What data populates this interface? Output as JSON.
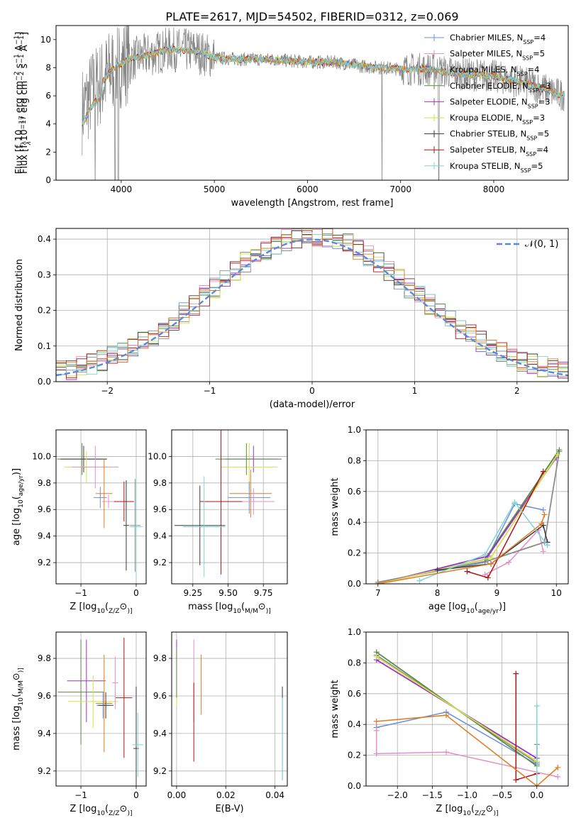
{
  "figure": {
    "title": "PLATE=2617, MJD=54502, FIBERID=0312, z=0.069"
  },
  "legend_entries": [
    {
      "label": "Chabrier MILES, N",
      "sub": "SSP",
      "suffix": "=4",
      "color": "#6a8fd8"
    },
    {
      "label": "Salpeter MILES, N",
      "sub": "SSP",
      "suffix": "=5",
      "color": "#e58ec4"
    },
    {
      "label": "Kroupa MILES, N",
      "sub": "SSP",
      "suffix": "=4",
      "color": "#8c8c8c"
    },
    {
      "label": "Chabrier ELODIE, N",
      "sub": "SSP",
      "suffix": "=3",
      "color": "#5b8a46"
    },
    {
      "label": "Salpeter ELODIE, N",
      "sub": "SSP",
      "suffix": "=3",
      "color": "#9b32c8"
    },
    {
      "label": "Kroupa ELODIE, N",
      "sub": "SSP",
      "suffix": "=3",
      "color": "#d2e04a"
    },
    {
      "label": "Chabrier STELIB, N",
      "sub": "SSP",
      "suffix": "=5",
      "color": "#3a3a3a"
    },
    {
      "label": "Salpeter STELIB, N",
      "sub": "SSP",
      "suffix": "=4",
      "color": "#b01414"
    },
    {
      "label": "Kroupa STELIB, N",
      "sub": "SSP",
      "suffix": "=5",
      "color": "#7fd6d6"
    }
  ],
  "colors": {
    "orange": "#e07b20",
    "dark_gray": "#555555",
    "normal_curve": "#5b88d8",
    "grid": "#b0b0b0"
  },
  "chart_data": [
    {
      "id": "spectrum",
      "type": "line",
      "title": "PLATE=2617, MJD=54502, FIBERID=0312, z=0.069",
      "xlabel": "wavelength [Angstrom, rest frame]",
      "ylabel_parts": [
        "Flux [f",
        "λ",
        "10",
        "−17",
        " erg cm",
        "−2",
        " s",
        "−1",
        " A",
        "−1",
        "]"
      ],
      "xlim": [
        3300,
        8800
      ],
      "ylim": [
        0,
        11
      ],
      "xticks": [
        4000,
        5000,
        6000,
        7000,
        8000
      ],
      "yticks": [
        0,
        2,
        4,
        6,
        8,
        10
      ],
      "grid": false,
      "legend": "top-right",
      "data_anchors": {
        "x": [
          3600,
          3700,
          3800,
          3900,
          4000,
          4100,
          4300,
          4500,
          4800,
          5000,
          5300,
          5600,
          6000,
          6300,
          6600,
          7000,
          7300,
          7600,
          8000,
          8400,
          8700
        ],
        "y": [
          5.2,
          6.4,
          7.0,
          7.9,
          8.3,
          8.6,
          8.9,
          9.3,
          9.2,
          8.7,
          8.6,
          8.6,
          8.4,
          8.4,
          8.1,
          7.9,
          7.9,
          7.6,
          7.4,
          6.8,
          6.1
        ]
      }
    },
    {
      "id": "residuals",
      "type": "area",
      "xlabel": "(data-model)/error",
      "ylabel": "Normed distribution",
      "xlim": [
        -2.5,
        2.5
      ],
      "ylim": [
        0,
        0.43
      ],
      "xticks": [
        -2,
        -1,
        0,
        1,
        2
      ],
      "yticks": [
        0.0,
        0.1,
        0.2,
        0.3,
        0.4
      ],
      "grid": true,
      "legend": "top-right",
      "legend_label": "𝒩(0, 1)",
      "bins": {
        "start": -2.5,
        "width": 0.1
      }
    },
    {
      "id": "age_vs_Z",
      "type": "scatter",
      "xlabel_parts": [
        "Z [log",
        "10",
        "(",
        "Z/Z",
        "⊙",
        ")]"
      ],
      "ylabel_parts": [
        "age  [log",
        "10",
        "(",
        "age/yr",
        ")]"
      ],
      "xlim": [
        -1.45,
        0.18
      ],
      "ylim": [
        9.04,
        10.2
      ],
      "xticks": [
        -1,
        0
      ],
      "yticks": [
        9.2,
        9.4,
        9.6,
        9.8,
        10.0
      ],
      "grid": true,
      "points": [
        {
          "series": 3,
          "x": -0.98,
          "y": 9.98,
          "xerr": 0.45,
          "yerr": 0.12
        },
        {
          "series": 6,
          "x": -0.95,
          "y": 9.98,
          "xerr": 0.42,
          "yerr": 0.1
        },
        {
          "series": 5,
          "x": -0.9,
          "y": 9.92,
          "xerr": 0.4,
          "yerr": 0.12
        },
        {
          "series": 1,
          "x": -0.74,
          "y": 9.92,
          "xerr": 0.42,
          "yerr": 0.16
        },
        {
          "series": 9,
          "x": -0.58,
          "y": 9.72,
          "xerr": 0.15,
          "yerr": 0.26
        },
        {
          "series": 0,
          "x": -0.65,
          "y": 9.69,
          "xerr": 0.12,
          "yerr": 0.08
        },
        {
          "series": 1,
          "x": -0.5,
          "y": 9.66,
          "xerr": 0.12,
          "yerr": 0.05
        },
        {
          "series": 7,
          "x": -0.22,
          "y": 9.66,
          "xerr": 0.18,
          "yerr": 0.15
        },
        {
          "series": 6,
          "x": -0.18,
          "y": 9.48,
          "xerr": 0.05,
          "yerr": 0.34
        },
        {
          "series": 2,
          "x": -0.02,
          "y": 9.48,
          "xerr": 0.1,
          "yerr": 0.35
        },
        {
          "series": 8,
          "x": 0.0,
          "y": 9.47,
          "xerr": 0.12,
          "yerr": 0.38
        }
      ]
    },
    {
      "id": "age_vs_mass",
      "type": "scatter",
      "xlabel_parts": [
        "mass [log",
        "10",
        "(",
        "M/M",
        "⊙",
        ")]"
      ],
      "xlim": [
        9.1,
        9.92
      ],
      "ylim": [
        9.04,
        10.2
      ],
      "xticks": [
        9.25,
        9.5,
        9.75
      ],
      "yticks": [
        9.2,
        9.4,
        9.6,
        9.8,
        10.0
      ],
      "xtick_labels": [
        "9.25",
        "9.50",
        "9.75"
      ],
      "grid": true,
      "points": [
        {
          "series": 4,
          "x": 9.68,
          "y": 9.98,
          "xerr": 0.2,
          "yerr": 0.1
        },
        {
          "series": 5,
          "x": 9.65,
          "y": 9.92,
          "xerr": 0.2,
          "yerr": 0.18
        },
        {
          "series": 3,
          "x": 9.63,
          "y": 9.98,
          "xerr": 0.22,
          "yerr": 0.12
        },
        {
          "series": 9,
          "x": 9.66,
          "y": 9.72,
          "xerr": 0.15,
          "yerr": 0.18
        },
        {
          "series": 0,
          "x": 9.65,
          "y": 9.69,
          "xerr": 0.15,
          "yerr": 0.12
        },
        {
          "series": 1,
          "x": 9.68,
          "y": 9.66,
          "xerr": 0.15,
          "yerr": 0.1
        },
        {
          "series": 7,
          "x": 9.45,
          "y": 9.66,
          "xerr": 0.15,
          "yerr": 0.55
        },
        {
          "series": 6,
          "x": 9.3,
          "y": 9.48,
          "xerr": 0.18,
          "yerr": 0.3
        },
        {
          "series": 8,
          "x": 9.33,
          "y": 9.47,
          "xerr": 0.15,
          "yerr": 0.38
        }
      ]
    },
    {
      "id": "mass_weight_vs_age",
      "type": "line",
      "xlabel_parts": [
        "age  [log",
        "10",
        "(",
        "age/yr",
        ")]"
      ],
      "ylabel": "mass weight",
      "xlim": [
        6.8,
        10.2
      ],
      "ylim": [
        0,
        1.0
      ],
      "xticks": [
        7,
        8,
        9,
        10
      ],
      "yticks": [
        0.0,
        0.2,
        0.4,
        0.6,
        0.8,
        1.0
      ],
      "grid": true,
      "series": [
        {
          "series": 0,
          "x": [
            7.0,
            8.8,
            9.3,
            9.78
          ],
          "y": [
            0.01,
            0.14,
            0.52,
            0.48
          ]
        },
        {
          "series": 1,
          "x": [
            8.8,
            9.2,
            9.7,
            9.78
          ],
          "y": [
            0.06,
            0.14,
            0.35,
            0.21
          ]
        },
        {
          "series": 2,
          "x": [
            7.0,
            8.85,
            9.8,
            10.05
          ],
          "y": [
            0.01,
            0.15,
            0.27,
            0.86
          ]
        },
        {
          "series": 3,
          "x": [
            7.0,
            8.8,
            10.05
          ],
          "y": [
            0.0,
            0.16,
            0.87
          ]
        },
        {
          "series": 4,
          "x": [
            7.0,
            8.85,
            10.0
          ],
          "y": [
            0.0,
            0.18,
            0.82
          ]
        },
        {
          "series": 5,
          "x": [
            7.0,
            8.9,
            10.02
          ],
          "y": [
            0.0,
            0.17,
            0.84
          ]
        },
        {
          "series": 6,
          "x": [
            8.0,
            8.9,
            9.78,
            9.85
          ],
          "y": [
            0.09,
            0.13,
            0.38,
            0.27
          ]
        },
        {
          "series": 7,
          "x": [
            8.5,
            8.85,
            9.78
          ],
          "y": [
            0.08,
            0.04,
            0.73
          ]
        },
        {
          "series": 8,
          "x": [
            7.7,
            8.8,
            9.3,
            9.85
          ],
          "y": [
            0.02,
            0.19,
            0.53,
            0.25
          ]
        },
        {
          "series": 9,
          "x": [
            7.0,
            8.9,
            9.75,
            9.8
          ],
          "y": [
            0.0,
            0.13,
            0.39,
            0.45
          ]
        }
      ]
    },
    {
      "id": "mass_vs_Z",
      "type": "scatter",
      "xlabel_parts": [
        "Z [log",
        "10",
        "(",
        "Z/Z",
        "⊙",
        ")]"
      ],
      "ylabel_parts": [
        "mass [log",
        "10",
        "(",
        "M/M",
        "⊙",
        ")]"
      ],
      "xlim": [
        -1.45,
        0.18
      ],
      "ylim": [
        9.12,
        9.94
      ],
      "xticks": [
        -1,
        0
      ],
      "yticks": [
        9.2,
        9.4,
        9.6,
        9.8
      ],
      "grid": true,
      "points": [
        {
          "series": 3,
          "x": -1.0,
          "y": 9.62,
          "xerr": 0.42,
          "yerr": 0.28
        },
        {
          "series": 4,
          "x": -0.9,
          "y": 9.68,
          "xerr": 0.35,
          "yerr": 0.22
        },
        {
          "series": 5,
          "x": -0.78,
          "y": 9.57,
          "xerr": 0.45,
          "yerr": 0.14
        },
        {
          "series": 9,
          "x": -0.58,
          "y": 9.56,
          "xerr": 0.15,
          "yerr": 0.26
        },
        {
          "series": 0,
          "x": -0.6,
          "y": 9.55,
          "xerr": 0.12,
          "yerr": 0.07
        },
        {
          "series": 6,
          "x": -0.55,
          "y": 9.55,
          "xerr": 0.14,
          "yerr": 0.07
        },
        {
          "series": 1,
          "x": -0.38,
          "y": 9.67,
          "xerr": 0.05,
          "yerr": 0.14
        },
        {
          "series": 7,
          "x": -0.22,
          "y": 9.59,
          "xerr": 0.15,
          "yerr": 0.32
        },
        {
          "series": 6,
          "x": 0.0,
          "y": 9.32,
          "xerr": 0.05,
          "yerr": 0.33
        },
        {
          "series": 8,
          "x": 0.03,
          "y": 9.34,
          "xerr": 0.1,
          "yerr": 0.17
        }
      ]
    },
    {
      "id": "mass_vs_ebv",
      "type": "scatter",
      "xlabel": "E(B-V)",
      "xlim": [
        -0.002,
        0.045
      ],
      "ylim": [
        9.12,
        9.94
      ],
      "xticks": [
        0.0,
        0.02,
        0.04
      ],
      "yticks": [
        9.2,
        9.4,
        9.6,
        9.8
      ],
      "xtick_labels": [
        "0.00",
        "0.02",
        "0.04"
      ],
      "grid": true,
      "points": [
        {
          "series": 4,
          "x": 0.0,
          "y": 9.85,
          "yerr": 0.05
        },
        {
          "series": 5,
          "x": 0.0,
          "y": 9.7,
          "yerr": 0.15
        },
        {
          "series": 3,
          "x": 0.0,
          "y": 9.72,
          "yerr": 0.13
        },
        {
          "series": 1,
          "x": 0.007,
          "y": 9.68,
          "yerr": 0.22
        },
        {
          "series": 7,
          "x": 0.007,
          "y": 9.46,
          "yerr": 0.21
        },
        {
          "series": 9,
          "x": 0.01,
          "y": 9.66,
          "yerr": 0.16
        },
        {
          "series": 6,
          "x": 0.043,
          "y": 9.4,
          "yerr": 0.25
        },
        {
          "series": 8,
          "x": 0.043,
          "y": 9.37,
          "yerr": 0.22
        }
      ]
    },
    {
      "id": "mass_weight_vs_Z",
      "type": "line",
      "xlabel_parts": [
        "Z [log",
        "10",
        "(",
        "Z/Z",
        "⊙",
        ")]"
      ],
      "ylabel": "mass weight",
      "xlim": [
        -2.45,
        0.45
      ],
      "ylim": [
        0,
        1.0
      ],
      "xticks": [
        -2.0,
        -1.5,
        -1.0,
        -0.5,
        0.0
      ],
      "yticks": [
        0.0,
        0.2,
        0.4,
        0.6,
        0.8,
        1.0
      ],
      "xtick_labels": [
        "−2.0",
        "−1.5",
        "−1.0",
        "−0.5",
        "0.0"
      ],
      "grid": true,
      "series": [
        {
          "series": 0,
          "x": [
            -2.3,
            -1.3,
            0.0
          ],
          "y": [
            0.38,
            0.48,
            0.14
          ]
        },
        {
          "series": 1,
          "x": [
            -2.3,
            -2.3,
            -1.3,
            0.3
          ],
          "y": [
            0.36,
            0.21,
            0.22,
            0.06
          ]
        },
        {
          "series": 2,
          "x": [
            -2.3,
            0.0,
            0.0
          ],
          "y": [
            0.85,
            0.15,
            0.27
          ]
        },
        {
          "series": 3,
          "x": [
            -2.3,
            0.0
          ],
          "y": [
            0.87,
            0.13
          ]
        },
        {
          "series": 4,
          "x": [
            -2.3,
            0.0
          ],
          "y": [
            0.82,
            0.18
          ]
        },
        {
          "series": 5,
          "x": [
            -2.3,
            0.0
          ],
          "y": [
            0.84,
            0.16
          ]
        },
        {
          "series": 7,
          "x": [
            -0.3,
            -0.3,
            0.0
          ],
          "y": [
            0.73,
            0.04,
            0.08
          ]
        },
        {
          "series": 8,
          "x": [
            0.0,
            0.0
          ],
          "y": [
            0.52,
            0.0
          ]
        },
        {
          "series": 9,
          "x": [
            -2.3,
            -1.3,
            0.0,
            0.3
          ],
          "y": [
            0.42,
            0.46,
            0.0,
            0.12
          ]
        }
      ]
    }
  ]
}
